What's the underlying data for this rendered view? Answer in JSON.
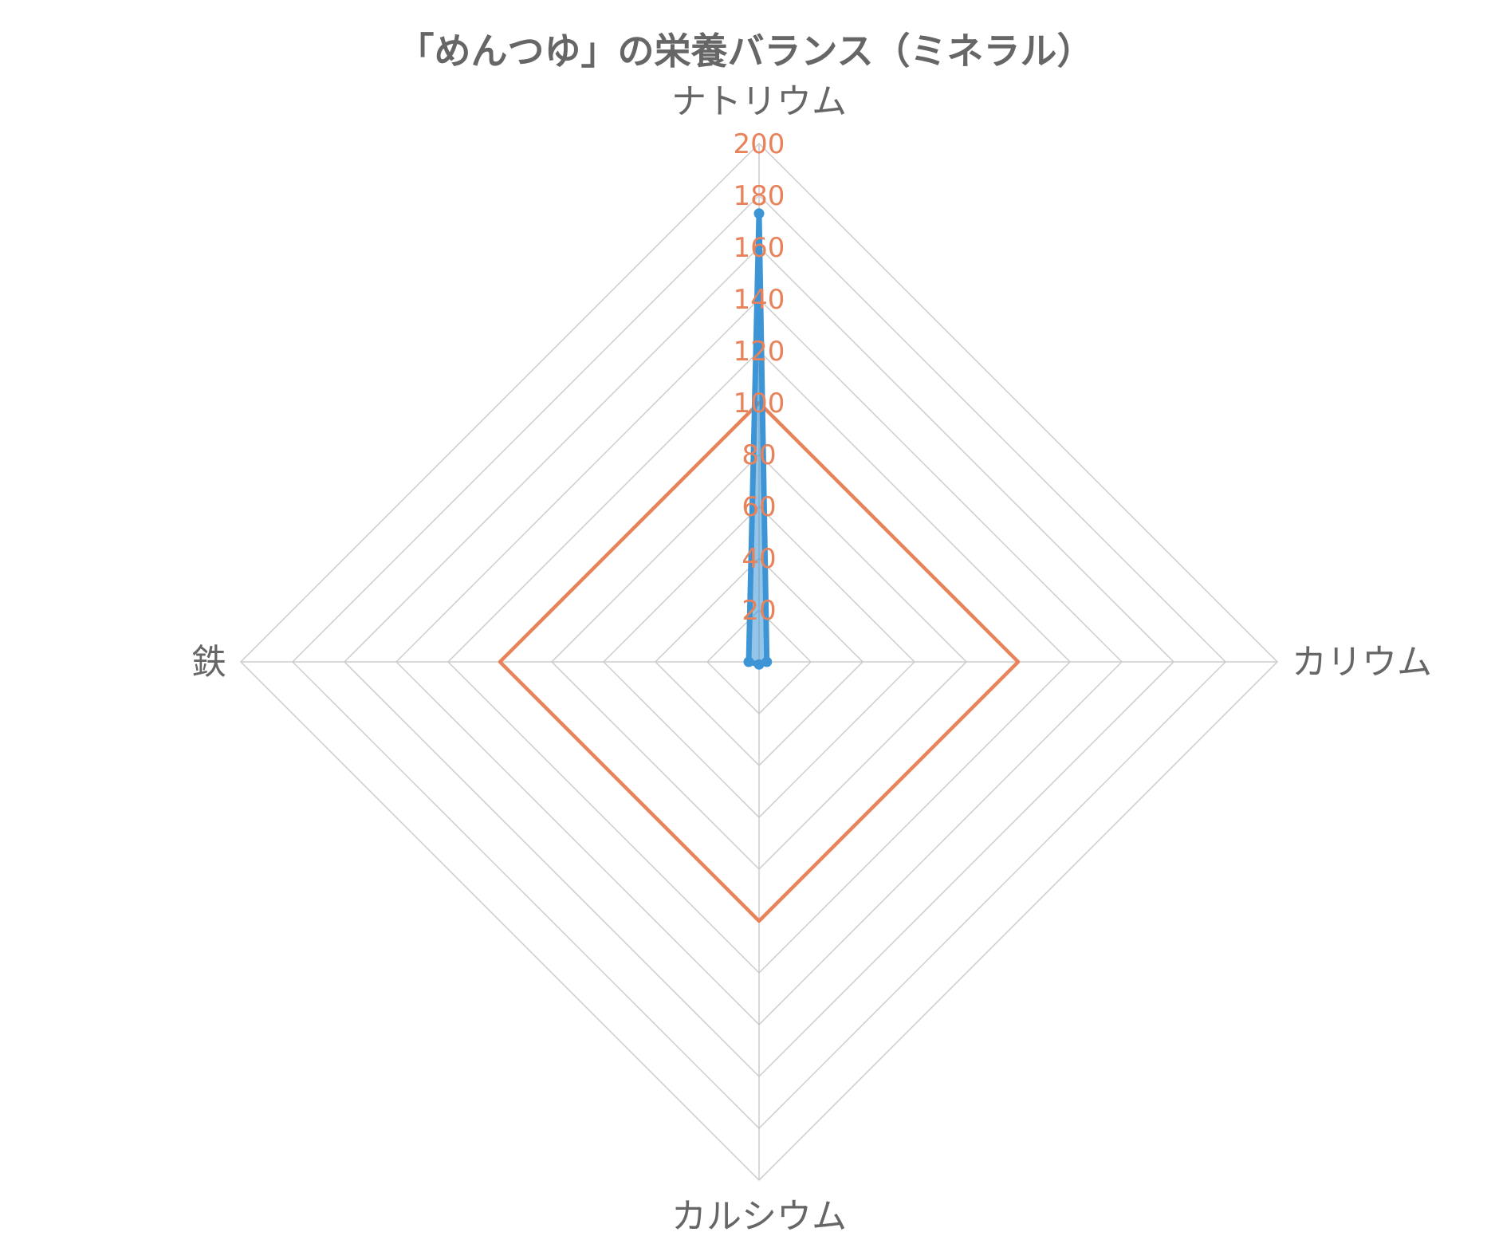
{
  "chart_data": {
    "type": "radar",
    "title": "「めんつゆ」の栄養バランス（ミネラル）",
    "axes": [
      "ナトリウム",
      "カリウム",
      "カルシウム",
      "鉄"
    ],
    "rlim": [
      0,
      200
    ],
    "ticks": [
      20,
      40,
      60,
      80,
      100,
      120,
      140,
      160,
      180,
      200
    ],
    "grid": true,
    "legend": "none",
    "series": [
      {
        "values": [
          100,
          100,
          100,
          100
        ],
        "color": "#e8825a",
        "fill": false,
        "markers": false
      },
      {
        "values": [
          173,
          3,
          1,
          4
        ],
        "color": "#3d95d6",
        "fill": true,
        "markers": true
      }
    ]
  }
}
